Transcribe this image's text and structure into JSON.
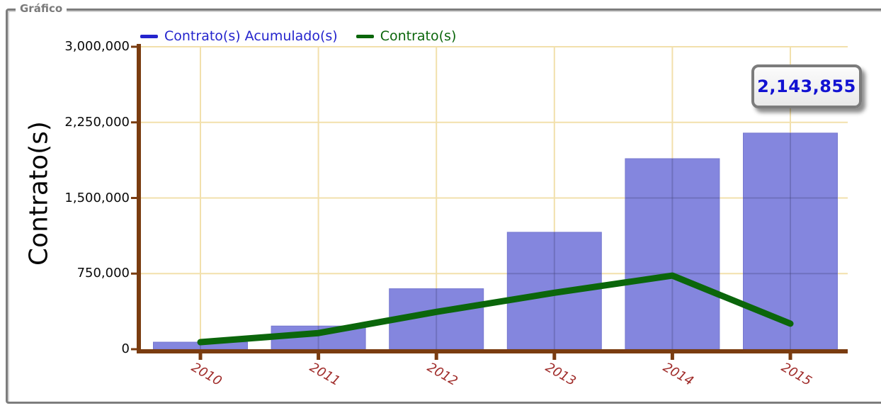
{
  "panel": {
    "title": "Gráfico"
  },
  "legend": {
    "items": [
      {
        "label": "Contrato(s) Acumulado(s)",
        "color": "#2a2acb",
        "series_type": "bar"
      },
      {
        "label": "Contrato(s)",
        "color": "#0b660b",
        "series_type": "line"
      }
    ]
  },
  "y_axis": {
    "title": "Contrato(s)"
  },
  "tooltip": {
    "value": "2,143,855"
  },
  "colors": {
    "bar_fill": "#8486de",
    "bar_edge": "#7779cf",
    "line": "#0b660b",
    "grid": "#f2e0ac",
    "axis": "#7a3c10",
    "x_tick_label": "#9f2a28",
    "legend_blue": "#2424cd",
    "legend_green": "#0b660b"
  },
  "chart_data": {
    "type": "bar",
    "categories": [
      "2010",
      "2011",
      "2012",
      "2013",
      "2014",
      "2015"
    ],
    "series": [
      {
        "name": "Contrato(s) Acumulado(s)",
        "type": "bar",
        "color": "#8486de",
        "values": [
          70000,
          230000,
          600000,
          1160000,
          1890000,
          2143855
        ]
      },
      {
        "name": "Contrato(s)",
        "type": "line",
        "color": "#0b660b",
        "values": [
          70000,
          160000,
          370000,
          560000,
          730000,
          253855
        ]
      }
    ],
    "title": "Gráfico",
    "xlabel": "",
    "ylabel": "Contrato(s)",
    "ylim": [
      0,
      3000000
    ],
    "y_ticks": [
      0,
      750000,
      1500000,
      2250000,
      3000000
    ],
    "y_tick_labels": [
      "0",
      "750,000",
      "1,500,000",
      "2,250,000",
      "3,000,000"
    ],
    "grid": true,
    "legend_position": "top",
    "annotation": {
      "text": "2,143,855",
      "category": "2015",
      "series": "Contrato(s) Acumulado(s)"
    }
  }
}
